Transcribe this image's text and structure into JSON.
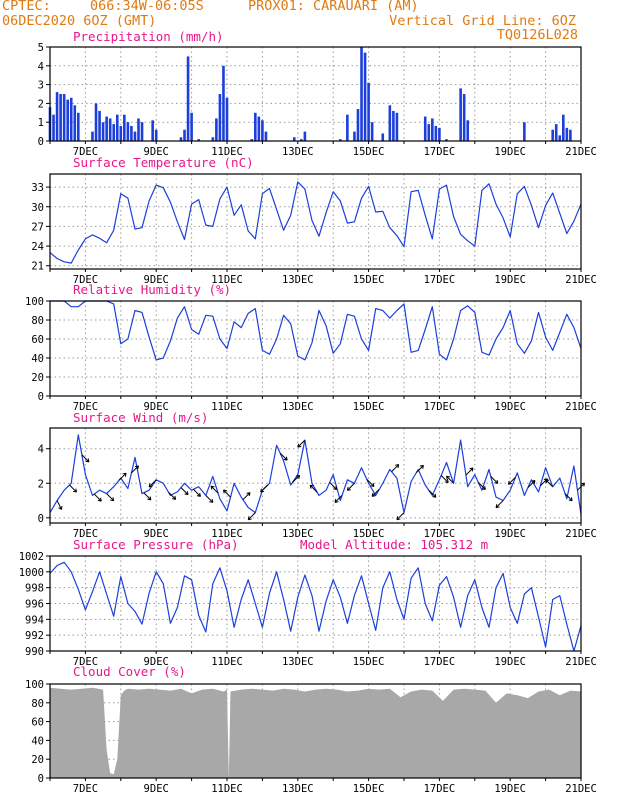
{
  "header": {
    "line1_left": "CPTEC:",
    "line1_coords": "066:34W-06:05S",
    "line1_station": "PROX01: CARAUARI (AM)",
    "line2_left": "06DEC2020 6OZ (GMT)",
    "line2_right": "Vertical Grid Line: 6OZ",
    "line3_right": "TQ0126L028"
  },
  "colors": {
    "header": "#e07a12",
    "title": "#e8168c",
    "series": "#1c3fdc",
    "cloud": "#a8a8a8",
    "grid": "#9a9a9a"
  },
  "x_labels": [
    "7DEC",
    "9DEC",
    "11DEC",
    "13DEC",
    "15DEC",
    "17DEC",
    "19DEC",
    "21DEC"
  ],
  "chart_data": [
    {
      "type": "bar",
      "title": "Precipitation (mm/h)",
      "ylim": [
        0,
        5
      ],
      "yticks": [
        0,
        1,
        2,
        3,
        4,
        5
      ],
      "grid": "dotted",
      "x_domain": [
        6,
        21
      ],
      "x": [
        6.0,
        6.1,
        6.2,
        6.3,
        6.4,
        6.5,
        6.6,
        6.7,
        6.8,
        7.2,
        7.3,
        7.4,
        7.5,
        7.6,
        7.7,
        7.8,
        7.9,
        8.0,
        8.1,
        8.2,
        8.3,
        8.4,
        8.5,
        8.6,
        8.9,
        9.0,
        9.7,
        9.8,
        9.9,
        10.0,
        10.2,
        10.6,
        10.7,
        10.8,
        10.9,
        11.0,
        11.7,
        11.8,
        11.9,
        12.0,
        12.1,
        12.9,
        13.1,
        13.2,
        14.2,
        14.4,
        14.6,
        14.7,
        14.8,
        14.9,
        15.0,
        15.1,
        15.4,
        15.6,
        15.7,
        15.8,
        16.6,
        16.7,
        16.8,
        16.9,
        17.0,
        17.2,
        17.6,
        17.7,
        17.8,
        19.4,
        20.2,
        20.3,
        20.4,
        20.5,
        20.6,
        20.7
      ],
      "values": [
        1.8,
        1.4,
        2.6,
        2.5,
        2.5,
        2.2,
        2.3,
        1.9,
        1.5,
        0.5,
        2.0,
        1.6,
        1.0,
        1.3,
        1.2,
        0.9,
        1.4,
        0.8,
        1.4,
        1.0,
        0.8,
        0.5,
        1.2,
        1.0,
        1.1,
        0.6,
        0.2,
        0.6,
        4.5,
        1.5,
        0.1,
        0.2,
        1.2,
        2.5,
        4.0,
        2.3,
        0.1,
        1.5,
        1.3,
        1.1,
        0.5,
        0.2,
        0.1,
        0.5,
        0.1,
        1.4,
        0.5,
        1.7,
        5.0,
        4.7,
        3.1,
        1.0,
        0.4,
        1.9,
        1.6,
        1.5,
        1.3,
        0.9,
        1.2,
        0.8,
        0.7,
        0.1,
        2.8,
        2.5,
        1.1,
        1.0,
        0.6,
        0.9,
        0.3,
        1.4,
        0.7,
        0.6
      ]
    },
    {
      "type": "line",
      "title": "Surface Temperature (nC)",
      "ylim": [
        20.5,
        35
      ],
      "yticks": [
        21,
        24,
        27,
        30,
        33
      ],
      "grid": "dotted",
      "x_domain": [
        6,
        21
      ],
      "x": [
        6.0,
        6.2,
        6.4,
        6.6,
        6.8,
        7.0,
        7.2,
        7.4,
        7.6,
        7.8,
        8.0,
        8.2,
        8.4,
        8.6,
        8.8,
        9.0,
        9.2,
        9.4,
        9.6,
        9.8,
        10.0,
        10.2,
        10.4,
        10.6,
        10.8,
        11.0,
        11.2,
        11.4,
        11.6,
        11.8,
        12.0,
        12.2,
        12.4,
        12.6,
        12.8,
        13.0,
        13.2,
        13.4,
        13.6,
        13.8,
        14.0,
        14.2,
        14.4,
        14.6,
        14.8,
        15.0,
        15.2,
        15.4,
        15.6,
        15.8,
        16.0,
        16.2,
        16.4,
        16.6,
        16.8,
        17.0,
        17.2,
        17.4,
        17.6,
        17.8,
        18.0,
        18.2,
        18.4,
        18.6,
        18.8,
        19.0,
        19.2,
        19.4,
        19.6,
        19.8,
        20.0,
        20.2,
        20.4,
        20.6,
        20.8,
        21.0
      ],
      "values": [
        23.0,
        22.1,
        21.6,
        21.4,
        23.4,
        25.1,
        25.7,
        25.2,
        24.5,
        26.4,
        32.0,
        31.3,
        26.6,
        26.8,
        30.9,
        33.3,
        32.9,
        30.7,
        27.7,
        25.0,
        30.4,
        31.1,
        27.2,
        27.0,
        31.2,
        33.0,
        28.7,
        30.3,
        26.3,
        25.1,
        32.0,
        32.8,
        29.6,
        26.4,
        28.7,
        33.8,
        32.7,
        27.9,
        25.5,
        29.1,
        32.3,
        30.9,
        27.5,
        27.7,
        31.3,
        33.1,
        29.2,
        29.3,
        26.8,
        25.6,
        23.9,
        32.3,
        32.5,
        28.7,
        25.1,
        32.7,
        33.3,
        28.5,
        25.8,
        24.8,
        24.0,
        32.5,
        33.5,
        30.4,
        28.3,
        25.4,
        32.0,
        33.1,
        30.2,
        26.8,
        30.2,
        32.1,
        29.0,
        25.9,
        27.8,
        30.4
      ]
    },
    {
      "type": "line",
      "title": "Relative Humidity (%)",
      "ylim": [
        0,
        100
      ],
      "yticks": [
        0,
        20,
        40,
        60,
        80,
        100
      ],
      "grid": "dotted",
      "x_domain": [
        6,
        21
      ],
      "x": [
        6.0,
        6.2,
        6.4,
        6.6,
        6.8,
        7.0,
        7.2,
        7.4,
        7.6,
        7.8,
        8.0,
        8.2,
        8.4,
        8.6,
        8.8,
        9.0,
        9.2,
        9.4,
        9.6,
        9.8,
        10.0,
        10.2,
        10.4,
        10.6,
        10.8,
        11.0,
        11.2,
        11.4,
        11.6,
        11.8,
        12.0,
        12.2,
        12.4,
        12.6,
        12.8,
        13.0,
        13.2,
        13.4,
        13.6,
        13.8,
        14.0,
        14.2,
        14.4,
        14.6,
        14.8,
        15.0,
        15.2,
        15.4,
        15.6,
        15.8,
        16.0,
        16.2,
        16.4,
        16.6,
        16.8,
        17.0,
        17.2,
        17.4,
        17.6,
        17.8,
        18.0,
        18.2,
        18.4,
        18.6,
        18.8,
        19.0,
        19.2,
        19.4,
        19.6,
        19.8,
        20.0,
        20.2,
        20.4,
        20.6,
        20.8,
        21.0
      ],
      "values": [
        100,
        100,
        100,
        94,
        94,
        100,
        100,
        100,
        100,
        97,
        55,
        60,
        90,
        88,
        62,
        38,
        40,
        58,
        82,
        94,
        70,
        65,
        85,
        84,
        60,
        50,
        78,
        72,
        87,
        92,
        48,
        44,
        60,
        85,
        76,
        42,
        38,
        56,
        90,
        74,
        45,
        55,
        86,
        84,
        60,
        48,
        92,
        90,
        82,
        90,
        97,
        46,
        48,
        70,
        94,
        44,
        38,
        60,
        90,
        95,
        88,
        46,
        43,
        60,
        72,
        90,
        55,
        45,
        58,
        88,
        62,
        48,
        67,
        86,
        72,
        50
      ]
    },
    {
      "type": "line",
      "title": "Surface Wind (m/s)",
      "ylim": [
        -0.3,
        5.2
      ],
      "yticks": [
        0,
        2,
        4
      ],
      "grid": "dotted",
      "x_domain": [
        6,
        21
      ],
      "x": [
        6.0,
        6.2,
        6.4,
        6.6,
        6.8,
        7.0,
        7.2,
        7.4,
        7.6,
        7.8,
        8.0,
        8.2,
        8.4,
        8.6,
        8.8,
        9.0,
        9.2,
        9.4,
        9.6,
        9.8,
        10.0,
        10.2,
        10.4,
        10.6,
        10.8,
        11.0,
        11.2,
        11.4,
        11.6,
        11.8,
        12.0,
        12.2,
        12.4,
        12.6,
        12.8,
        13.0,
        13.2,
        13.4,
        13.6,
        13.8,
        14.0,
        14.2,
        14.4,
        14.6,
        14.8,
        15.0,
        15.2,
        15.4,
        15.6,
        15.8,
        16.0,
        16.2,
        16.4,
        16.6,
        16.8,
        17.0,
        17.2,
        17.4,
        17.6,
        17.8,
        18.0,
        18.2,
        18.4,
        18.6,
        18.8,
        19.0,
        19.2,
        19.4,
        19.6,
        19.8,
        20.0,
        20.2,
        20.4,
        20.6,
        20.8,
        21.0
      ],
      "values": [
        0.3,
        1.0,
        1.6,
        2.0,
        4.8,
        2.5,
        1.3,
        1.6,
        1.4,
        1.8,
        2.3,
        1.7,
        3.5,
        1.4,
        1.6,
        2.2,
        2.0,
        1.3,
        1.5,
        2.0,
        1.6,
        1.8,
        1.3,
        2.4,
        1.1,
        0.4,
        2.0,
        1.2,
        0.6,
        0.3,
        1.6,
        2.0,
        4.2,
        3.3,
        1.9,
        2.5,
        4.5,
        2.0,
        1.3,
        1.6,
        2.5,
        1.0,
        2.2,
        2.0,
        2.9,
        2.0,
        1.3,
        2.0,
        2.8,
        2.3,
        0.3,
        2.1,
        2.8,
        1.9,
        1.3,
        2.2,
        3.2,
        2.0,
        4.5,
        1.8,
        2.5,
        1.6,
        2.8,
        1.2,
        1.0,
        1.6,
        2.6,
        1.3,
        2.2,
        1.5,
        2.9,
        1.8,
        2.3,
        1.1,
        3.0,
        0.2
      ],
      "vectors": {
        "x": [
          6.2,
          6.55,
          6.9,
          7.25,
          7.6,
          7.95,
          8.3,
          8.65,
          9.0,
          9.35,
          9.7,
          10.05,
          10.4,
          10.75,
          11.1,
          11.45,
          11.8,
          12.15,
          12.5,
          12.85,
          13.2,
          13.55,
          13.9,
          14.25,
          14.6,
          14.95,
          15.3,
          15.65,
          16.0,
          16.35,
          16.7,
          17.05,
          17.4,
          17.75,
          18.1,
          18.45,
          18.8,
          19.15,
          19.5,
          19.85,
          20.2,
          20.55,
          20.9
        ],
        "u": [
          1,
          1,
          1,
          1,
          1,
          1,
          1,
          1,
          -1,
          1,
          1,
          1,
          1,
          -1,
          -1,
          1,
          -1,
          -1,
          1,
          1,
          -1,
          -1,
          1,
          -1,
          -1,
          1,
          -1,
          1,
          -1,
          1,
          1,
          1,
          -1,
          1,
          1,
          1,
          -1,
          -1,
          1,
          1,
          -1,
          1,
          1
        ],
        "v": [
          -2,
          -1,
          -1,
          -1,
          -1,
          1,
          1,
          -1,
          -1,
          -1,
          -1,
          -1,
          -1,
          1,
          1,
          1,
          -1,
          -1,
          -1,
          1,
          -1,
          1,
          -1,
          -1,
          -1,
          -1,
          -1,
          1,
          -1,
          1,
          -1,
          -1,
          1,
          1,
          -1,
          -1,
          -1,
          -1,
          1,
          1,
          1,
          -1,
          1
        ],
        "note": "wind arrows along the series; direction sign only"
      }
    },
    {
      "type": "line",
      "title": "Surface Pressure (hPa)",
      "annotation": "Model Altitude: 105.312 m",
      "ylim": [
        990,
        1002
      ],
      "yticks": [
        990,
        992,
        994,
        996,
        998,
        1000,
        1002
      ],
      "grid": "dotted",
      "x_domain": [
        6,
        21
      ],
      "x": [
        6.0,
        6.2,
        6.4,
        6.6,
        6.8,
        7.0,
        7.2,
        7.4,
        7.6,
        7.8,
        8.0,
        8.2,
        8.4,
        8.6,
        8.8,
        9.0,
        9.2,
        9.4,
        9.6,
        9.8,
        10.0,
        10.2,
        10.4,
        10.6,
        10.8,
        11.0,
        11.2,
        11.4,
        11.6,
        11.8,
        12.0,
        12.2,
        12.4,
        12.6,
        12.8,
        13.0,
        13.2,
        13.4,
        13.6,
        13.8,
        14.0,
        14.2,
        14.4,
        14.6,
        14.8,
        15.0,
        15.2,
        15.4,
        15.6,
        15.8,
        16.0,
        16.2,
        16.4,
        16.6,
        16.8,
        17.0,
        17.2,
        17.4,
        17.6,
        17.8,
        18.0,
        18.2,
        18.4,
        18.6,
        18.8,
        19.0,
        19.2,
        19.4,
        19.6,
        19.8,
        20.0,
        20.2,
        20.4,
        20.6,
        20.8,
        21.0
      ],
      "values": [
        999.8,
        1000.8,
        1001.2,
        1000.0,
        997.8,
        995.2,
        997.5,
        1000.0,
        997.2,
        994.4,
        999.4,
        996.0,
        995.0,
        993.4,
        997.3,
        1000.0,
        998.5,
        993.5,
        995.5,
        999.5,
        999.0,
        994.5,
        992.4,
        998.5,
        1000.5,
        997.6,
        993.0,
        996.5,
        999.0,
        996.0,
        993.0,
        997.3,
        1000.0,
        996.5,
        992.5,
        996.8,
        999.6,
        997.0,
        992.5,
        996.3,
        999.0,
        996.8,
        993.5,
        997.0,
        999.5,
        996.0,
        992.6,
        998.0,
        1000.0,
        996.5,
        994.0,
        999.2,
        1000.5,
        996.0,
        993.8,
        998.3,
        999.4,
        996.8,
        993.0,
        997.0,
        999.0,
        995.5,
        993.0,
        998.0,
        999.8,
        995.5,
        993.5,
        997.2,
        998.0,
        994.3,
        990.5,
        996.5,
        997.0,
        993.4,
        990.0,
        993.2
      ]
    },
    {
      "type": "area",
      "title": "Cloud Cover (%)",
      "ylim": [
        0,
        100
      ],
      "yticks": [
        0,
        20,
        40,
        60,
        80,
        100
      ],
      "grid": "dotted",
      "x_domain": [
        6,
        21
      ],
      "x": [
        6.0,
        6.3,
        6.6,
        6.9,
        7.2,
        7.5,
        7.6,
        7.7,
        7.8,
        7.9,
        8.0,
        8.1,
        8.2,
        8.5,
        8.8,
        9.1,
        9.4,
        9.7,
        10.0,
        10.3,
        10.6,
        10.9,
        11.0,
        11.05,
        11.1,
        11.4,
        11.7,
        12.0,
        12.3,
        12.6,
        12.9,
        13.2,
        13.5,
        13.8,
        14.1,
        14.4,
        14.7,
        15.0,
        15.3,
        15.6,
        15.9,
        16.2,
        16.5,
        16.8,
        17.1,
        17.4,
        17.7,
        18.0,
        18.3,
        18.6,
        18.9,
        19.2,
        19.5,
        19.8,
        20.1,
        20.4,
        20.7,
        21.0
      ],
      "values": [
        96,
        95,
        94,
        95,
        96,
        94,
        30,
        5,
        4,
        20,
        88,
        93,
        95,
        94,
        95,
        94,
        93,
        95,
        90,
        94,
        95,
        92,
        94,
        0,
        92,
        94,
        95,
        94,
        93,
        95,
        94,
        92,
        94,
        95,
        94,
        92,
        93,
        95,
        94,
        95,
        86,
        92,
        94,
        93,
        82,
        94,
        95,
        94,
        93,
        80,
        90,
        88,
        85,
        92,
        94,
        88,
        93,
        92
      ]
    }
  ]
}
